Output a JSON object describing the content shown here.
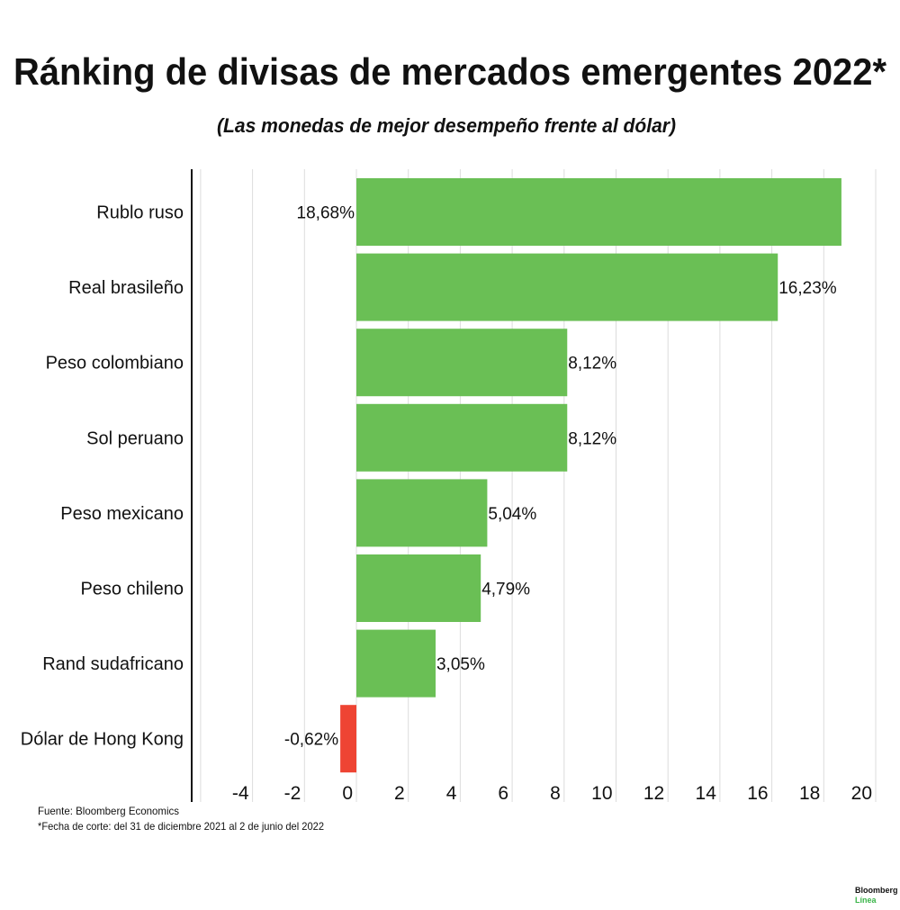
{
  "chart_data": {
    "type": "bar",
    "orientation": "horizontal",
    "title": "Ránking de divisas de mercados emergentes 2022*",
    "subtitle": "(Las monedas de mejor desempeño frente al dólar)",
    "categories": [
      "Rublo ruso",
      "Real brasileño",
      "Peso colombiano",
      "Sol peruano",
      "Peso mexicano",
      "Peso chileno",
      "Rand sudafricano",
      "Dólar de Hong Kong"
    ],
    "values": [
      18.68,
      16.23,
      8.12,
      8.12,
      5.04,
      4.79,
      3.05,
      -0.62
    ],
    "data_labels": [
      "18,68%",
      "16,23%",
      "8,12%",
      "8,12%",
      "5,04%",
      "4,79%",
      "3,05%",
      "-0,62%"
    ],
    "xlim": [
      -6,
      20
    ],
    "xticks": [
      -4,
      -2,
      0,
      2,
      4,
      6,
      8,
      10,
      12,
      14,
      16,
      18,
      20
    ],
    "grid": true,
    "colors": {
      "positive": "#6abf55",
      "negative": "#ee4433"
    }
  },
  "footer": {
    "source": "Fuente: Bloomberg Economics",
    "note": "*Fecha de corte: del 31 de diciembre 2021 al 2 de junio del 2022"
  },
  "logo": {
    "line1": "Bloomberg",
    "line2": "Línea"
  }
}
